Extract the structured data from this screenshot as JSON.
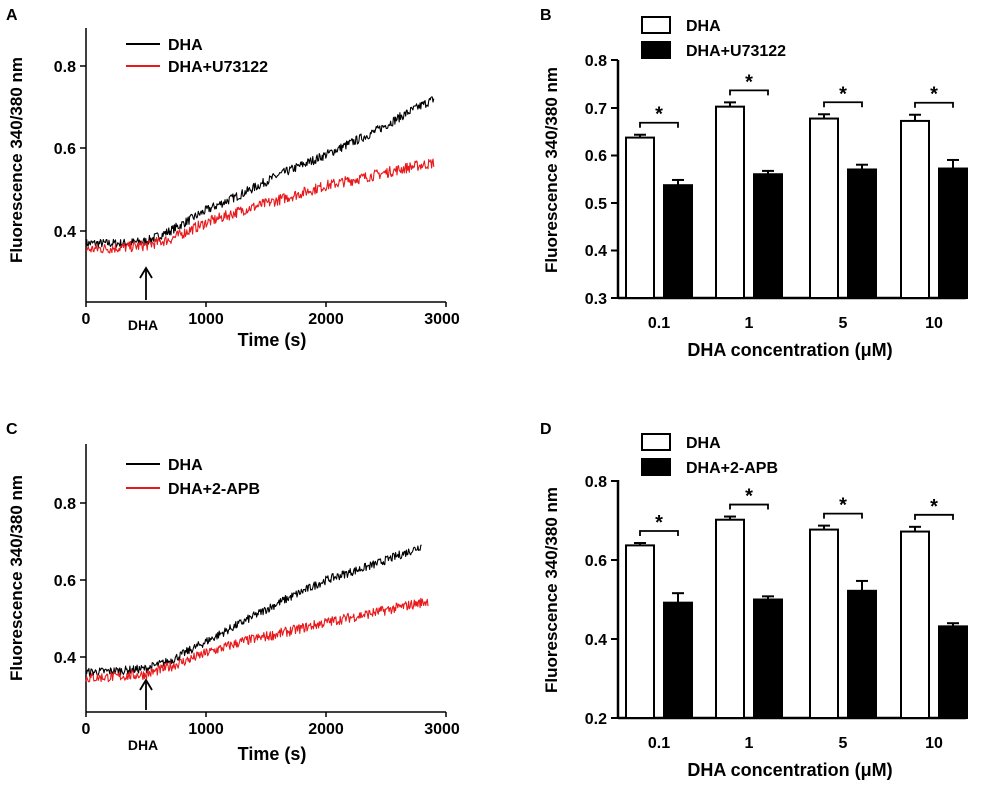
{
  "colors": {
    "dha": "#000000",
    "treatment": "#e8191b",
    "axis": "#000000"
  },
  "panels": [
    {
      "label": "A",
      "kind": "line",
      "ylabel": "Fluorescence 340/380 nm",
      "xlabel": "Time (s)",
      "xticks": [
        "0",
        "1000",
        "2000",
        "3000"
      ],
      "yticks": [
        "0.4",
        "0.6",
        "0.8"
      ],
      "legend": [
        "DHA",
        "DHA+U73122"
      ],
      "arrow_label": "DHA"
    },
    {
      "label": "B",
      "kind": "bar",
      "ylabel": "Fluorescence 340/380 nm",
      "xlabel": "DHA concentration (μM)",
      "categories": [
        "0.1",
        "1",
        "5",
        "10"
      ],
      "yticks": [
        "0.3",
        "0.4",
        "0.5",
        "0.6",
        "0.7",
        "0.8"
      ],
      "legend": [
        "DHA",
        "DHA+U73122"
      ],
      "sig": [
        "*",
        "*",
        "*",
        "*"
      ]
    },
    {
      "label": "C",
      "kind": "line",
      "ylabel": "Fluorescence 340/380 nm",
      "xlabel": "Time (s)",
      "xticks": [
        "0",
        "1000",
        "2000",
        "3000"
      ],
      "yticks": [
        "0.4",
        "0.6",
        "0.8"
      ],
      "legend": [
        "DHA",
        "DHA+2-APB"
      ],
      "arrow_label": "DHA"
    },
    {
      "label": "D",
      "kind": "bar",
      "ylabel": "Fluorescence 340/380 nm",
      "xlabel": "DHA concentration (μM)",
      "categories": [
        "0.1",
        "1",
        "5",
        "10"
      ],
      "yticks": [
        "0.2",
        "0.4",
        "0.6",
        "0.8"
      ],
      "legend": [
        "DHA",
        "DHA+2-APB"
      ],
      "sig": [
        "*",
        "*",
        "*",
        "*"
      ]
    }
  ],
  "chart_data": [
    {
      "type": "line",
      "panel": "A",
      "xlabel": "Time (s)",
      "ylabel": "Fluorescence 340/380 nm",
      "xlim": [
        0,
        3000
      ],
      "ylim": [
        0.3,
        0.88
      ],
      "annotation": {
        "text": "DHA",
        "x": 500
      },
      "series": [
        {
          "name": "DHA",
          "x": [
            0,
            300,
            500,
            700,
            1000,
            1300,
            1600,
            2000,
            2400,
            2700,
            2900
          ],
          "y": [
            0.37,
            0.37,
            0.375,
            0.4,
            0.45,
            0.49,
            0.535,
            0.585,
            0.64,
            0.69,
            0.72
          ]
        },
        {
          "name": "DHA+U73122",
          "x": [
            0,
            300,
            500,
            700,
            1000,
            1300,
            1600,
            2000,
            2400,
            2700,
            2900
          ],
          "y": [
            0.355,
            0.36,
            0.365,
            0.38,
            0.42,
            0.45,
            0.475,
            0.51,
            0.535,
            0.555,
            0.565
          ]
        }
      ]
    },
    {
      "type": "bar",
      "panel": "B",
      "categories": [
        "0.1",
        "1",
        "5",
        "10"
      ],
      "xlabel": "DHA concentration (μM)",
      "ylabel": "Fluorescence 340/380 nm",
      "ylim": [
        0.3,
        0.8
      ],
      "series": [
        {
          "name": "DHA",
          "values": [
            0.637,
            0.702,
            0.677,
            0.672
          ],
          "errors": [
            0.006,
            0.009,
            0.009,
            0.013
          ]
        },
        {
          "name": "DHA+U73122",
          "values": [
            0.537,
            0.56,
            0.57,
            0.572
          ],
          "errors": [
            0.011,
            0.007,
            0.01,
            0.018
          ]
        }
      ]
    },
    {
      "type": "line",
      "panel": "C",
      "xlabel": "Time (s)",
      "ylabel": "Fluorescence 340/380 nm",
      "xlim": [
        0,
        3000
      ],
      "ylim": [
        0.3,
        0.88
      ],
      "annotation": {
        "text": "DHA",
        "x": 500
      },
      "series": [
        {
          "name": "DHA",
          "x": [
            0,
            300,
            500,
            700,
            1000,
            1300,
            1600,
            2000,
            2400,
            2700,
            2800
          ],
          "y": [
            0.36,
            0.365,
            0.37,
            0.39,
            0.44,
            0.49,
            0.54,
            0.6,
            0.64,
            0.675,
            0.69
          ]
        },
        {
          "name": "DHA+2-APB",
          "x": [
            0,
            300,
            500,
            700,
            1000,
            1300,
            1600,
            2000,
            2400,
            2700,
            2850
          ],
          "y": [
            0.345,
            0.35,
            0.355,
            0.375,
            0.41,
            0.44,
            0.46,
            0.49,
            0.515,
            0.535,
            0.545
          ]
        }
      ]
    },
    {
      "type": "bar",
      "panel": "D",
      "categories": [
        "0.1",
        "1",
        "5",
        "10"
      ],
      "xlabel": "DHA concentration (μM)",
      "ylabel": "Fluorescence 340/380 nm",
      "ylim": [
        0.2,
        0.8
      ],
      "series": [
        {
          "name": "DHA",
          "values": [
            0.637,
            0.702,
            0.677,
            0.672
          ],
          "errors": [
            0.006,
            0.008,
            0.01,
            0.012
          ]
        },
        {
          "name": "DHA+2-APB",
          "values": [
            0.492,
            0.5,
            0.522,
            0.432
          ],
          "errors": [
            0.024,
            0.008,
            0.025,
            0.008
          ]
        }
      ]
    }
  ]
}
